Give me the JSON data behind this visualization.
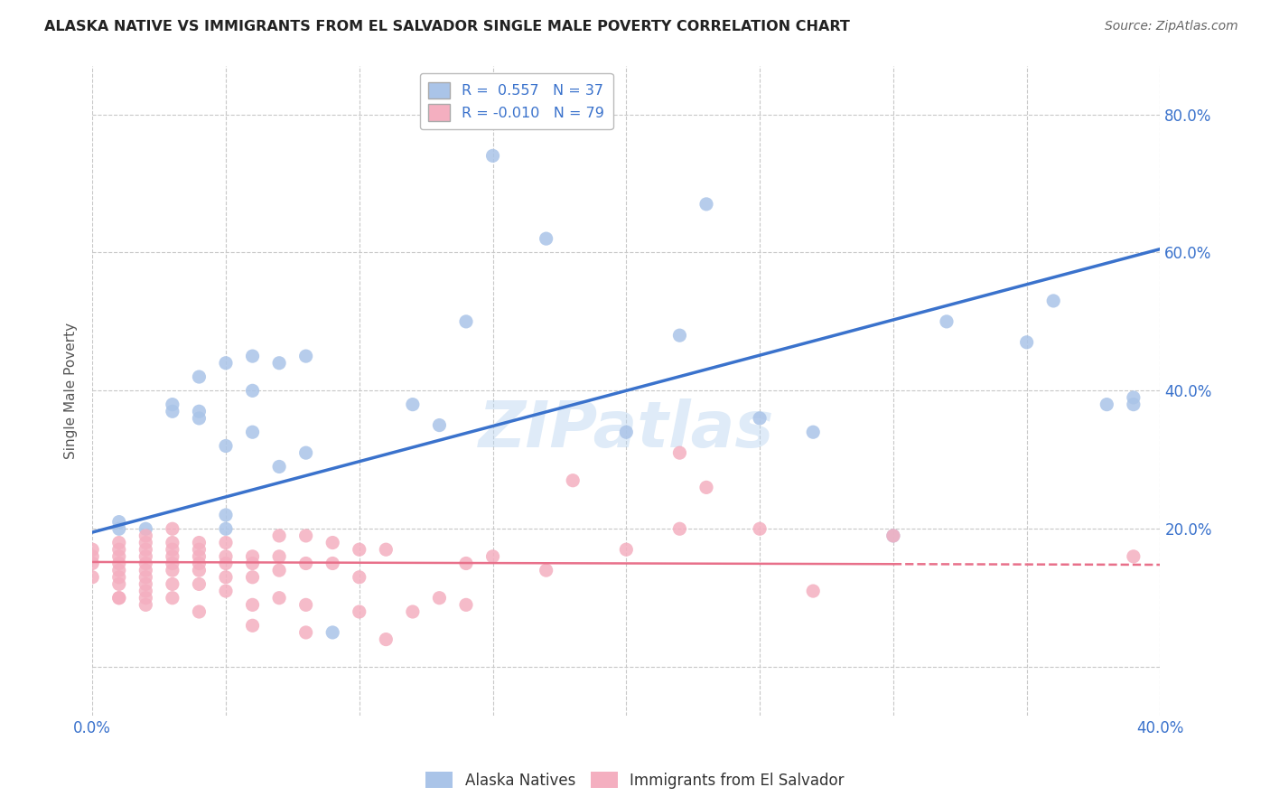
{
  "title": "ALASKA NATIVE VS IMMIGRANTS FROM EL SALVADOR SINGLE MALE POVERTY CORRELATION CHART",
  "source": "Source: ZipAtlas.com",
  "ylabel": "Single Male Poverty",
  "xlim": [
    0.0,
    0.4
  ],
  "ylim": [
    -0.07,
    0.87
  ],
  "blue_R": 0.557,
  "blue_N": 37,
  "pink_R": -0.01,
  "pink_N": 79,
  "blue_color": "#aac4e8",
  "pink_color": "#f4afc0",
  "blue_line_color": "#3a72cc",
  "pink_line_color": "#e8708a",
  "background_color": "#ffffff",
  "grid_color": "#c8c8c8",
  "watermark": "ZIPatlas",
  "blue_line_x0": 0.0,
  "blue_line_y0": 0.195,
  "blue_line_x1": 0.4,
  "blue_line_y1": 0.605,
  "pink_line_x0": 0.0,
  "pink_line_y0": 0.152,
  "pink_line_x1": 0.4,
  "pink_line_y1": 0.148,
  "blue_scatter_x": [
    0.01,
    0.01,
    0.02,
    0.03,
    0.03,
    0.04,
    0.04,
    0.04,
    0.05,
    0.05,
    0.05,
    0.05,
    0.06,
    0.06,
    0.06,
    0.07,
    0.07,
    0.08,
    0.08,
    0.09,
    0.12,
    0.13,
    0.14,
    0.15,
    0.17,
    0.2,
    0.22,
    0.23,
    0.25,
    0.27,
    0.3,
    0.32,
    0.35,
    0.36,
    0.38,
    0.39,
    0.39
  ],
  "blue_scatter_y": [
    0.2,
    0.21,
    0.2,
    0.37,
    0.38,
    0.36,
    0.37,
    0.42,
    0.2,
    0.22,
    0.32,
    0.44,
    0.34,
    0.4,
    0.45,
    0.29,
    0.44,
    0.31,
    0.45,
    0.05,
    0.38,
    0.35,
    0.5,
    0.74,
    0.62,
    0.34,
    0.48,
    0.67,
    0.36,
    0.34,
    0.19,
    0.5,
    0.47,
    0.53,
    0.38,
    0.39,
    0.38
  ],
  "pink_scatter_x": [
    0.0,
    0.0,
    0.0,
    0.0,
    0.01,
    0.01,
    0.01,
    0.01,
    0.01,
    0.01,
    0.01,
    0.01,
    0.01,
    0.02,
    0.02,
    0.02,
    0.02,
    0.02,
    0.02,
    0.02,
    0.02,
    0.02,
    0.02,
    0.02,
    0.03,
    0.03,
    0.03,
    0.03,
    0.03,
    0.03,
    0.03,
    0.03,
    0.04,
    0.04,
    0.04,
    0.04,
    0.04,
    0.04,
    0.04,
    0.05,
    0.05,
    0.05,
    0.05,
    0.05,
    0.06,
    0.06,
    0.06,
    0.06,
    0.06,
    0.07,
    0.07,
    0.07,
    0.07,
    0.08,
    0.08,
    0.08,
    0.08,
    0.09,
    0.09,
    0.1,
    0.1,
    0.1,
    0.11,
    0.11,
    0.12,
    0.13,
    0.14,
    0.14,
    0.15,
    0.17,
    0.18,
    0.2,
    0.22,
    0.22,
    0.23,
    0.25,
    0.27,
    0.3,
    0.39
  ],
  "pink_scatter_y": [
    0.13,
    0.15,
    0.16,
    0.17,
    0.1,
    0.12,
    0.13,
    0.14,
    0.15,
    0.16,
    0.17,
    0.18,
    0.1,
    0.09,
    0.11,
    0.13,
    0.14,
    0.15,
    0.16,
    0.17,
    0.18,
    0.19,
    0.1,
    0.12,
    0.1,
    0.12,
    0.14,
    0.15,
    0.16,
    0.17,
    0.18,
    0.2,
    0.08,
    0.12,
    0.14,
    0.15,
    0.16,
    0.17,
    0.18,
    0.11,
    0.13,
    0.15,
    0.16,
    0.18,
    0.06,
    0.09,
    0.13,
    0.15,
    0.16,
    0.1,
    0.14,
    0.16,
    0.19,
    0.05,
    0.09,
    0.15,
    0.19,
    0.15,
    0.18,
    0.08,
    0.13,
    0.17,
    0.04,
    0.17,
    0.08,
    0.1,
    0.09,
    0.15,
    0.16,
    0.14,
    0.27,
    0.17,
    0.2,
    0.31,
    0.26,
    0.2,
    0.11,
    0.19,
    0.16
  ]
}
